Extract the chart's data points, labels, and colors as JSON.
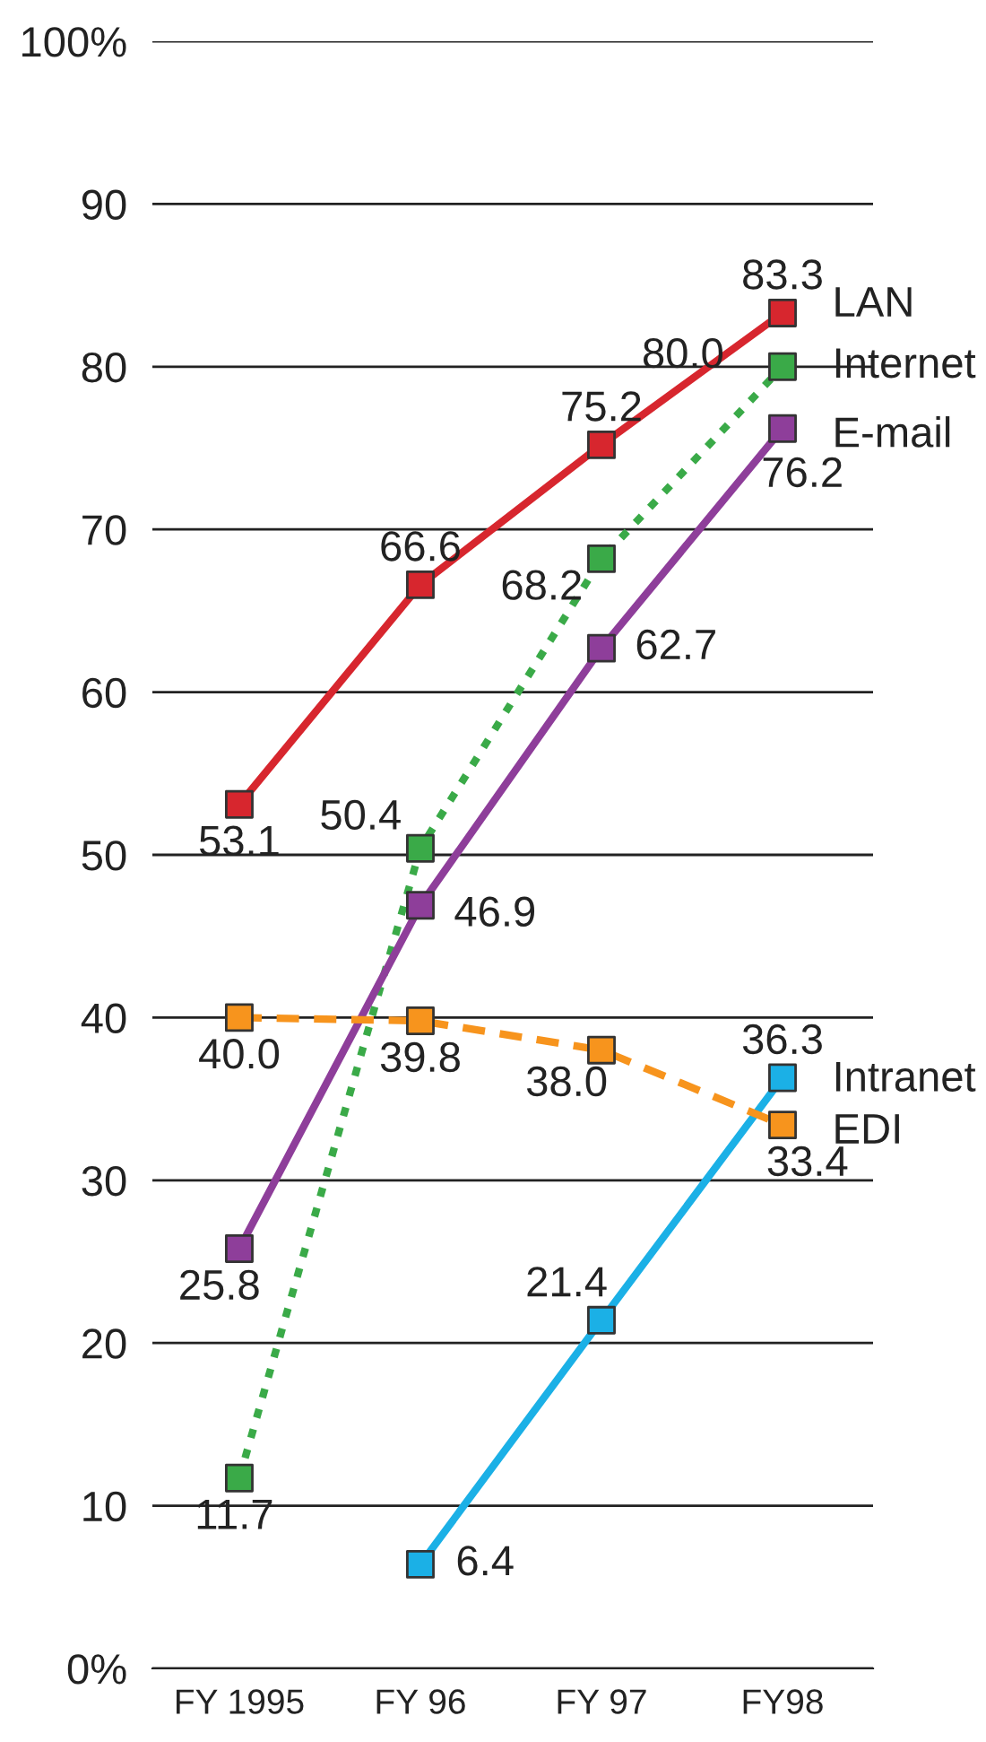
{
  "chart_data": {
    "type": "line",
    "categories": [
      "FY 1995",
      "FY 96",
      "FY 97",
      "FY98"
    ],
    "series": [
      {
        "name": "LAN",
        "color": "#d7262e",
        "line_style": "solid",
        "values": [
          53.1,
          66.6,
          75.2,
          83.3
        ],
        "value_labels": [
          "53.1",
          "66.6",
          "75.2",
          "83.3"
        ]
      },
      {
        "name": "Internet",
        "color": "#3aaa48",
        "line_style": "dotted",
        "values": [
          11.7,
          50.4,
          68.2,
          80.0
        ],
        "value_labels": [
          "11.7",
          "50.4",
          "68.2",
          "80.0"
        ]
      },
      {
        "name": "E-mail",
        "color": "#8e3e9a",
        "line_style": "solid",
        "values": [
          25.8,
          46.9,
          62.7,
          76.2
        ],
        "value_labels": [
          "25.8",
          "46.9",
          "62.7",
          "76.2"
        ]
      },
      {
        "name": "Intranet",
        "color": "#1bb0e6",
        "line_style": "solid",
        "values": [
          null,
          6.4,
          21.4,
          36.3
        ],
        "value_labels": [
          null,
          "6.4",
          "21.4",
          "36.3"
        ]
      },
      {
        "name": "EDI",
        "color": "#f7941d",
        "line_style": "dashed",
        "values": [
          40.0,
          39.8,
          38.0,
          33.4
        ],
        "value_labels": [
          "40.0",
          "39.8",
          "38.0",
          "33.4"
        ]
      }
    ],
    "ylim": [
      0,
      100
    ],
    "yticks": [
      {
        "value": 0,
        "label": "0%"
      },
      10,
      20,
      30,
      40,
      50,
      60,
      70,
      80,
      90,
      {
        "value": 100,
        "label": "100%"
      }
    ],
    "grid": "y",
    "marker": "square",
    "legend": false
  }
}
